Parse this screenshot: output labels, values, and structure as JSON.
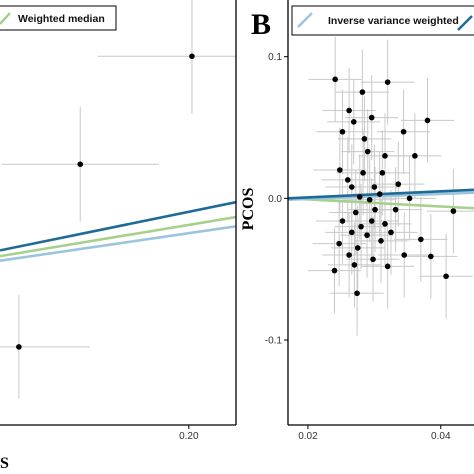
{
  "colors": {
    "ivw": "#1f6b96",
    "weighted_median": "#a8d08d",
    "light_blue": "#9cc5dd",
    "error_bar": "#c8c8c8",
    "point": "#000000",
    "frame": "#000000"
  },
  "chart_data": [
    {
      "panel": "A",
      "type": "scatter",
      "xlabel": "S",
      "ylabel": "",
      "xlim": [
        0.08,
        0.23
      ],
      "ylim": [
        -0.24,
        0.13
      ],
      "x_ticks": [
        {
          "value": 0.2,
          "label": "0.20"
        }
      ],
      "y_ticks": [],
      "legend": {
        "entries": [
          {
            "name": "Weighted median",
            "color": "#a8d08d"
          }
        ],
        "placement": "top-left"
      },
      "points": [
        {
          "x": 0.202,
          "y": 0.081,
          "x_err": 0.06,
          "y_err": 0.05
        },
        {
          "x": 0.131,
          "y": -0.013,
          "x_err": 0.05,
          "y_err": 0.05
        },
        {
          "x": 0.092,
          "y": -0.172,
          "x_err": 0.045,
          "y_err": 0.045
        }
      ],
      "lines": [
        {
          "color": "#1f6b96",
          "x": [
            0.08,
            0.23
          ],
          "y": [
            -0.088,
            -0.046
          ]
        },
        {
          "color": "#a8d08d",
          "x": [
            0.08,
            0.23
          ],
          "y": [
            -0.093,
            -0.059
          ]
        },
        {
          "color": "#9cc5dd",
          "x": [
            0.08,
            0.23
          ],
          "y": [
            -0.097,
            -0.067
          ]
        }
      ]
    },
    {
      "panel": "B",
      "type": "scatter",
      "title": "",
      "xlabel": "",
      "ylabel": "PCOS",
      "xlim": [
        0.017,
        0.045
      ],
      "ylim": [
        -0.16,
        0.14
      ],
      "grid": false,
      "x_ticks": [
        {
          "value": 0.02,
          "label": "0.02"
        },
        {
          "value": 0.04,
          "label": "0.04"
        }
      ],
      "y_ticks": [
        {
          "value": 0.1,
          "label": "0.1"
        },
        {
          "value": 0.0,
          "label": "0.0"
        },
        {
          "value": -0.1,
          "label": "-0.1"
        }
      ],
      "legend": {
        "entries": [
          {
            "name": "Inverse variance weighted",
            "color": "#9cc5dd"
          },
          {
            "name": "",
            "color": "#1f6b96"
          }
        ],
        "placement": "top"
      },
      "points": [
        {
          "x": 0.0241,
          "y": 0.084,
          "x_err": 0.004,
          "y_err": 0.03
        },
        {
          "x": 0.0282,
          "y": 0.075,
          "x_err": 0.004,
          "y_err": 0.03
        },
        {
          "x": 0.032,
          "y": 0.082,
          "x_err": 0.004,
          "y_err": 0.03
        },
        {
          "x": 0.0262,
          "y": 0.062,
          "x_err": 0.004,
          "y_err": 0.03
        },
        {
          "x": 0.0296,
          "y": 0.057,
          "x_err": 0.004,
          "y_err": 0.03
        },
        {
          "x": 0.0269,
          "y": 0.054,
          "x_err": 0.004,
          "y_err": 0.03
        },
        {
          "x": 0.038,
          "y": 0.055,
          "x_err": 0.004,
          "y_err": 0.03
        },
        {
          "x": 0.0252,
          "y": 0.047,
          "x_err": 0.004,
          "y_err": 0.03
        },
        {
          "x": 0.0285,
          "y": 0.042,
          "x_err": 0.004,
          "y_err": 0.03
        },
        {
          "x": 0.0344,
          "y": 0.047,
          "x_err": 0.004,
          "y_err": 0.03
        },
        {
          "x": 0.029,
          "y": 0.033,
          "x_err": 0.004,
          "y_err": 0.03
        },
        {
          "x": 0.0316,
          "y": 0.03,
          "x_err": 0.004,
          "y_err": 0.03
        },
        {
          "x": 0.0361,
          "y": 0.03,
          "x_err": 0.004,
          "y_err": 0.03
        },
        {
          "x": 0.0248,
          "y": 0.02,
          "x_err": 0.004,
          "y_err": 0.03
        },
        {
          "x": 0.026,
          "y": 0.013,
          "x_err": 0.004,
          "y_err": 0.03
        },
        {
          "x": 0.0283,
          "y": 0.018,
          "x_err": 0.004,
          "y_err": 0.03
        },
        {
          "x": 0.0312,
          "y": 0.018,
          "x_err": 0.004,
          "y_err": 0.03
        },
        {
          "x": 0.0266,
          "y": 0.008,
          "x_err": 0.004,
          "y_err": 0.03
        },
        {
          "x": 0.03,
          "y": 0.008,
          "x_err": 0.004,
          "y_err": 0.03
        },
        {
          "x": 0.0336,
          "y": 0.01,
          "x_err": 0.004,
          "y_err": 0.03
        },
        {
          "x": 0.0278,
          "y": 0.001,
          "x_err": 0.004,
          "y_err": 0.03
        },
        {
          "x": 0.0293,
          "y": -0.001,
          "x_err": 0.004,
          "y_err": 0.03
        },
        {
          "x": 0.0308,
          "y": 0.003,
          "x_err": 0.004,
          "y_err": 0.03
        },
        {
          "x": 0.0353,
          "y": 0.0,
          "x_err": 0.004,
          "y_err": 0.03
        },
        {
          "x": 0.0272,
          "y": -0.01,
          "x_err": 0.004,
          "y_err": 0.03
        },
        {
          "x": 0.0301,
          "y": -0.008,
          "x_err": 0.004,
          "y_err": 0.03
        },
        {
          "x": 0.0332,
          "y": -0.008,
          "x_err": 0.004,
          "y_err": 0.03
        },
        {
          "x": 0.0419,
          "y": -0.009,
          "x_err": 0.004,
          "y_err": 0.03
        },
        {
          "x": 0.0252,
          "y": -0.016,
          "x_err": 0.004,
          "y_err": 0.03
        },
        {
          "x": 0.028,
          "y": -0.02,
          "x_err": 0.004,
          "y_err": 0.03
        },
        {
          "x": 0.0296,
          "y": -0.016,
          "x_err": 0.004,
          "y_err": 0.03
        },
        {
          "x": 0.0316,
          "y": -0.018,
          "x_err": 0.004,
          "y_err": 0.03
        },
        {
          "x": 0.0266,
          "y": -0.024,
          "x_err": 0.004,
          "y_err": 0.03
        },
        {
          "x": 0.0289,
          "y": -0.026,
          "x_err": 0.004,
          "y_err": 0.03
        },
        {
          "x": 0.0325,
          "y": -0.024,
          "x_err": 0.004,
          "y_err": 0.03
        },
        {
          "x": 0.0247,
          "y": -0.032,
          "x_err": 0.004,
          "y_err": 0.03
        },
        {
          "x": 0.0275,
          "y": -0.035,
          "x_err": 0.004,
          "y_err": 0.03
        },
        {
          "x": 0.031,
          "y": -0.03,
          "x_err": 0.004,
          "y_err": 0.03
        },
        {
          "x": 0.037,
          "y": -0.029,
          "x_err": 0.004,
          "y_err": 0.03
        },
        {
          "x": 0.0262,
          "y": -0.04,
          "x_err": 0.004,
          "y_err": 0.03
        },
        {
          "x": 0.0298,
          "y": -0.043,
          "x_err": 0.004,
          "y_err": 0.03
        },
        {
          "x": 0.0345,
          "y": -0.04,
          "x_err": 0.004,
          "y_err": 0.03
        },
        {
          "x": 0.0385,
          "y": -0.041,
          "x_err": 0.004,
          "y_err": 0.03
        },
        {
          "x": 0.024,
          "y": -0.051,
          "x_err": 0.004,
          "y_err": 0.03
        },
        {
          "x": 0.027,
          "y": -0.047,
          "x_err": 0.004,
          "y_err": 0.03
        },
        {
          "x": 0.032,
          "y": -0.048,
          "x_err": 0.004,
          "y_err": 0.03
        },
        {
          "x": 0.0408,
          "y": -0.055,
          "x_err": 0.004,
          "y_err": 0.03
        },
        {
          "x": 0.0274,
          "y": -0.067,
          "x_err": 0.004,
          "y_err": 0.03
        }
      ],
      "lines": [
        {
          "color": "#a8d08d",
          "x": [
            0.017,
            0.045
          ],
          "y": [
            0.0,
            -0.007
          ]
        },
        {
          "color": "#9cc5dd",
          "x": [
            0.017,
            0.045
          ],
          "y": [
            -0.001,
            0.004
          ]
        },
        {
          "color": "#1f6b96",
          "x": [
            0.017,
            0.045
          ],
          "y": [
            0.0,
            0.006
          ]
        }
      ]
    }
  ]
}
